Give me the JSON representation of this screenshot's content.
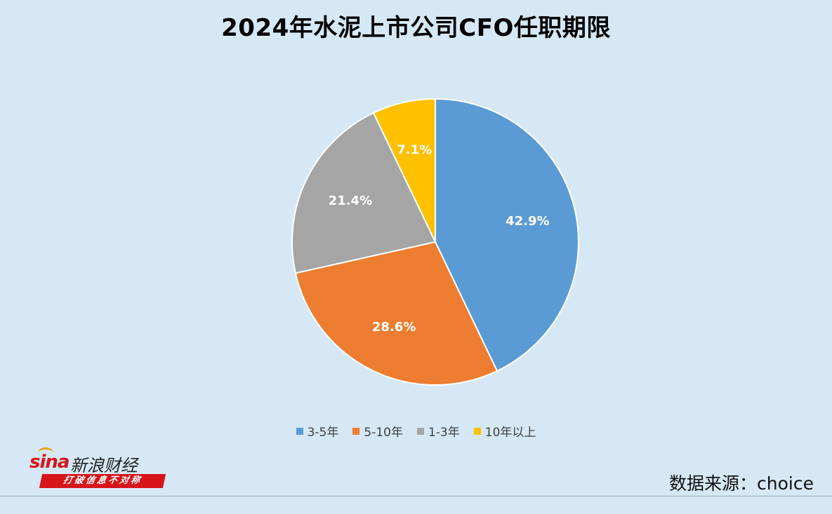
{
  "title": "2024年水泥上市公司CFO任职期限",
  "chart_data": {
    "type": "pie",
    "title": "2024年水泥上市公司CFO任职期限",
    "start_angle_deg": 0,
    "direction": "clockwise",
    "slices": [
      {
        "name": "3-5年",
        "value": 42.9,
        "label": "42.9%",
        "color": "#5b9bd5"
      },
      {
        "name": "5-10年",
        "value": 28.6,
        "label": "28.6%",
        "color": "#ed7d31"
      },
      {
        "name": "1-3年",
        "value": 21.4,
        "label": "21.4%",
        "color": "#a5a5a5"
      },
      {
        "name": "10年以上",
        "value": 7.1,
        "label": "7.1%",
        "color": "#ffc000"
      }
    ],
    "legend_position": "bottom"
  },
  "legend": [
    {
      "label": "3-5年",
      "color": "#5b9bd5"
    },
    {
      "label": "5-10年",
      "color": "#ed7d31"
    },
    {
      "label": "1-3年",
      "color": "#a5a5a5"
    },
    {
      "label": "10年以上",
      "color": "#ffc000"
    }
  ],
  "logo": {
    "brand": "sina",
    "name": "新浪财经",
    "slogan": "打破信息不对称"
  },
  "source": "数据来源：choice"
}
